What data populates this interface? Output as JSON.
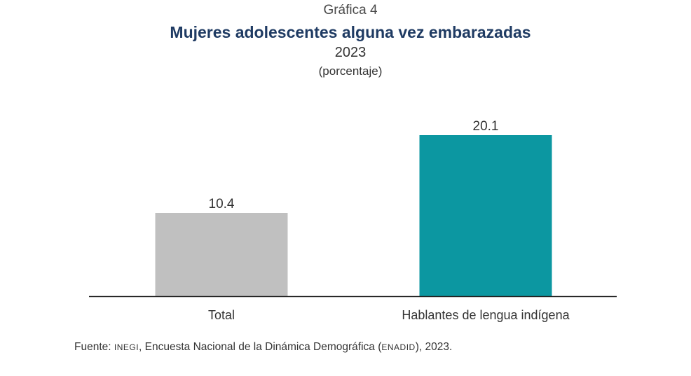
{
  "header": {
    "kicker": "Gráfica 4",
    "title": "Mujeres adolescentes alguna vez embarazadas",
    "year": "2023",
    "unit": "(porcentaje)"
  },
  "chart_data": {
    "type": "bar",
    "categories": [
      "Total",
      "Hablantes de lengua indígena"
    ],
    "values": [
      10.4,
      20.1
    ],
    "data_labels": [
      "10.4",
      "20.1"
    ],
    "title": "Mujeres adolescentes alguna vez embarazadas",
    "subtitle": "2023",
    "ylabel": "",
    "xlabel": "",
    "ylim": [
      0,
      21
    ],
    "grid": false,
    "legend": "none",
    "colors": [
      "#c0c0c0",
      "#0c97a1"
    ],
    "axis_color": "#222222"
  },
  "source": {
    "prefix": "Fuente: ",
    "org": "INEGI",
    "middle": ", Encuesta Nacional de la Dinámica Demográfica (",
    "survey": "ENADID",
    "suffix": "), 2023."
  }
}
